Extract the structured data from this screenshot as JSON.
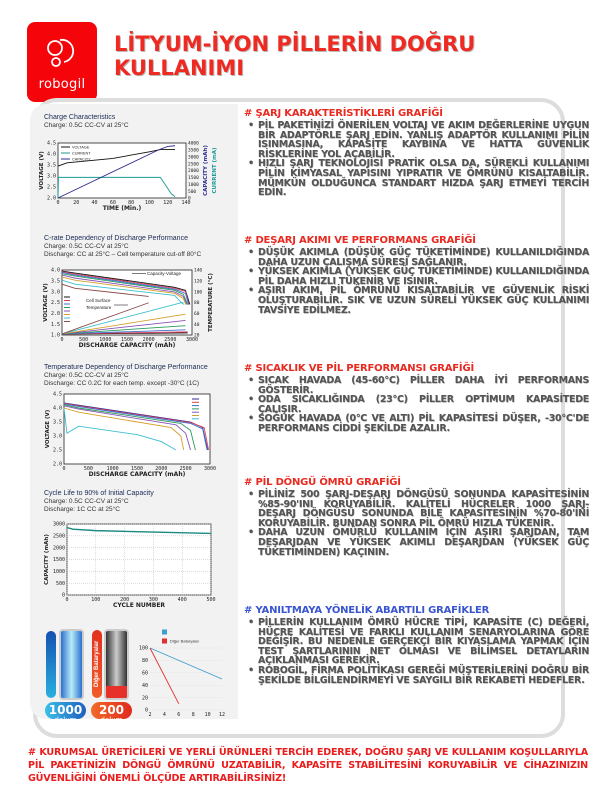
{
  "brand": {
    "name": "robogil",
    "color": "#f5050a"
  },
  "title": [
    "LİTYUM-İYON PİLLERİN DOĞRU",
    "KULLANIMI"
  ],
  "sections": [
    {
      "heading": "#  ŞARJ KARAKTERİSTİKLERİ GRAFİĞİ",
      "items": [
        "PİL PAKETİNİZİ ÖNERİLEN VOLTAJ VE AKIM DEĞERLERİNE UYGUN BİR ADAPTÖRLE ŞARJ EDİN. YANLIŞ ADAPTÖR KULLANIMI PİLİN ISINMASINA, KAPASİTE KAYBINA VE HATTA GÜVENLİK RİSKLERİNE YOL AÇABİLİR.",
        "HIZLI ŞARJ TEKNOLOJİSİ PRATİK OLSA DA, SÜREKLİ KULLANIMI PİLİN KİMYASAL YAPISINI YIPRATIR VE ÖMRÜNÜ KISALTABİLİR. MÜMKÜN OLDUĞUNCA STANDART HIZDA ŞARJ ETMEYİ TERCİH EDİN."
      ]
    },
    {
      "heading": "#  DEŞARJ AKIMI VE PERFORMANS GRAFİĞİ",
      "items": [
        "DÜŞÜK AKIMLA (DÜŞÜK GÜÇ TÜKETİMİNDE) KULLANILDIĞINDA DAHA UZUN ÇALIŞMA SÜRESİ SAĞLANIR.",
        "YÜKSEK AKIMLA (YÜKSEK GÜÇ TÜKETİMİNDE) KULLANILDIĞINDA PİL DAHA HIZLI TÜKENİR VE ISINIR.",
        "AŞIRI AKIM, PİL ÖMRÜNÜ KISALTABİLİR VE GÜVENLİK RİSKİ OLUŞTURABİLİR. SIK VE UZUN SÜRELİ YÜKSEK GÜÇ KULLANIMI TAVSİYE EDİLMEZ."
      ]
    },
    {
      "heading": "#  SICAKLIK VE PİL PERFORMANSI GRAFİĞİ",
      "items": [
        "SICAK HAVADA (45-60°C) PİLLER DAHA İYİ PERFORMANS GÖSTERİR.",
        "ODA SICAKLIĞINDA (23°C) PİLLER OPTİMUM KAPASİTEDE ÇALIŞIR.",
        "SOĞUK HAVADA (0°C VE ALTI) PİL KAPASİTESİ DÜŞER, -30°C'DE PERFORMANS CİDDİ ŞEKİLDE AZALIR."
      ]
    },
    {
      "heading": "#  PİL DÖNGÜ ÖMRÜ GRAFİĞİ",
      "items": [
        "PİLİNİZ 500 ŞARJ-DEŞARJ DÖNGÜSÜ SONUNDA KAPASİTESİNİN %85-90'INI KORUYABİLİR. KALİTELİ HÜCRELER 1000 ŞARJ-DEŞARJ DÖNGÜSÜ SONUNDA BİLE KAPASİTESİNİN %70-80'İNİ KORUYABİLİR. BUNDAN SONRA PİL ÖMRÜ HIZLA TÜKENİR.",
        "DAHA UZUN ÖMÜRLÜ KULLANIM İÇİN AŞIRI ŞARJDAN, TAM DEŞARJDAN VE YÜKSEK AKIMLI DEŞARJDAN (YÜKSEK GÜÇ TÜKETİMİNDEN) KAÇININ."
      ]
    },
    {
      "heading": "#  YANILTMAYA YÖNELİK ABARTILI GRAFİKLER",
      "items": [
        "PİLLERİN KULLANIM ÖMRÜ HÜCRE TİPİ, KAPASİTE (C) DEĞERİ, HÜCRE KALİTESİ VE FARKLI KULLANIM SENARYOLARINA GÖRE DEĞİŞİR. BU NEDENLE GERÇEKÇİ BİR KIYASLAMA YAPMAK İÇİN TEST ŞARTLARININ NET OLMASI VE BİLİMSEL DETAYLARIN AÇIKLANMASI GEREKİR.",
        "ROBOGİL, FİRMA POLİTİKASI GEREĞİ MÜŞTERİLERİNİ DOĞRU BİR ŞEKİLDE BİLGİLENDİRMEYİ VE SAYGILI BİR REKABETİ HEDEFLER."
      ]
    }
  ],
  "footer": "#  KURUMSAL ÜRETİCİLERİ VE YERLİ ÜRÜNLERİ TERCİH EDEREK, DOĞRU ŞARJ VE KULLANIM KOŞULLARIYLA PİL PAKETİNİZİN DÖNGÜ ÖMRÜNÜ UZATABİLİR, KAPASİTE STABİLİTESİNİ KORUYABİLİR VE CİHAZINIZIN GÜVENLİĞİNİ ÖNEMLİ ÖLÇÜDE ARTIRABİLİRSİNİZ!",
  "batteries": {
    "left": {
      "count": "1000",
      "unit": "dolum",
      "color": "#1f9be0"
    },
    "right": {
      "label": "Diğer Bataryalar",
      "count": "200",
      "unit": "dolum",
      "color": "#f04a23"
    }
  },
  "chart_data": [
    {
      "type": "line",
      "title": "Charge Characteristics",
      "subtitle": [
        "Charge: 0.5C CC-CV at 25°C"
      ],
      "xlabel": "TIME (Min.)",
      "ylabel": "VOLTAGE (V)",
      "y2label": "CAPACITY (mAh)",
      "y3label": "CURRENT (mA)",
      "xlim": [
        0,
        140
      ],
      "ylim": [
        2.0,
        4.5
      ],
      "y2lim": [
        0,
        4000
      ],
      "xticks": [
        "0",
        "20",
        "40",
        "60",
        "80",
        "100",
        "120",
        "140"
      ],
      "yticks": [
        "2.0",
        "2.5",
        "3.0",
        "3.5",
        "4.0",
        "4.5"
      ],
      "y2ticks": [
        "0",
        "500",
        "1000",
        "1500",
        "2000",
        "2500",
        "3000",
        "3500",
        "4000"
      ],
      "legend": "top-left",
      "series": [
        {
          "name": "VOLTAGE",
          "color": "#111111",
          "axis": "left",
          "points": [
            [
              0,
              3.45
            ],
            [
              10,
              3.6
            ],
            [
              60,
              3.8
            ],
            [
              100,
              4.1
            ],
            [
              112,
              4.2
            ],
            [
              128,
              4.2
            ]
          ]
        },
        {
          "name": "CURRENT",
          "color": "#1a9a97",
          "axis": "right",
          "points": [
            [
              0,
              0
            ],
            [
              0.5,
              1500
            ],
            [
              112,
              1500
            ],
            [
              118,
              900
            ],
            [
              124,
              300
            ],
            [
              128,
              100
            ]
          ]
        },
        {
          "name": "CAPACITY",
          "color": "#2b2b8f",
          "axis": "right",
          "points": [
            [
              0,
              0
            ],
            [
              110,
              3500
            ],
            [
              120,
              3750
            ],
            [
              128,
              3800
            ]
          ]
        }
      ]
    },
    {
      "type": "line",
      "title": "C-rate Dependency of Discharge Performance",
      "subtitle": [
        "Charge: 0.5C CC-CV at 25°C",
        "Discharge: CC at 25°C – Cell temperature cut-off 80°C"
      ],
      "xlabel": "DISCHARGE CAPACITY (mAh)",
      "ylabel": "VOLTAGE (V)",
      "y2label": "TEMPERATURE (°C)",
      "xlim": [
        0,
        3000
      ],
      "ylim": [
        1.0,
        4.2
      ],
      "y2lim": [
        20,
        145
      ],
      "xticks": [
        "0",
        "500",
        "1000",
        "1500",
        "2000",
        "2500",
        "3000"
      ],
      "yticks": [
        "1.0",
        "1.5",
        "2.0",
        "2.5",
        "3.0",
        "3.5",
        "4.0"
      ],
      "y2ticks": [
        "20",
        "40",
        "60",
        "80",
        "100",
        "120",
        "140"
      ],
      "annotations": [
        "Capacity-Voltage",
        "Cell Surface",
        "Temperature"
      ],
      "series": [
        {
          "color": "#111111",
          "axis": "left",
          "points": [
            [
              0,
              4.15
            ],
            [
              300,
              4.05
            ],
            [
              2600,
              3.35
            ],
            [
              2850,
              3.2
            ],
            [
              2950,
              2.5
            ]
          ]
        },
        {
          "color": "#d9415a",
          "axis": "left",
          "points": [
            [
              0,
              4.12
            ],
            [
              300,
              4.0
            ],
            [
              2600,
              3.3
            ],
            [
              2850,
              3.15
            ],
            [
              2930,
              2.5
            ]
          ]
        },
        {
          "color": "#3a6fd0",
          "axis": "left",
          "points": [
            [
              0,
              4.08
            ],
            [
              300,
              3.95
            ],
            [
              2600,
              3.25
            ],
            [
              2850,
              3.05
            ],
            [
              2920,
              2.5
            ]
          ]
        },
        {
          "color": "#2a9a5a",
          "axis": "left",
          "points": [
            [
              0,
              4.02
            ],
            [
              300,
              3.9
            ],
            [
              2600,
              3.2
            ],
            [
              2800,
              3.0
            ],
            [
              2900,
              2.5
            ]
          ]
        },
        {
          "color": "#8a52b8",
          "axis": "left",
          "points": [
            [
              0,
              3.95
            ],
            [
              300,
              3.8
            ],
            [
              2600,
              3.12
            ],
            [
              2800,
              2.9
            ],
            [
              2880,
              2.5
            ]
          ]
        },
        {
          "color": "#d6a02a",
          "axis": "left",
          "points": [
            [
              0,
              3.85
            ],
            [
              300,
              3.7
            ],
            [
              2600,
              3.05
            ],
            [
              2800,
              2.8
            ],
            [
              2860,
              2.5
            ]
          ]
        },
        {
          "color": "#3bbfcf",
          "axis": "left",
          "points": [
            [
              0,
              3.7
            ],
            [
              300,
              3.5
            ],
            [
              2600,
              2.95
            ],
            [
              2750,
              2.6
            ],
            [
              2820,
              2.5
            ]
          ]
        },
        {
          "color": "#8a4a4a",
          "axis": "left",
          "points": [
            [
              0,
              3.5
            ],
            [
              300,
              3.3
            ],
            [
              2000,
              2.9
            ]
          ]
        },
        {
          "color": "#111111",
          "axis": "right",
          "points": [
            [
              0,
              22
            ],
            [
              2900,
              24
            ]
          ]
        },
        {
          "color": "#d9415a",
          "axis": "right",
          "points": [
            [
              0,
              22
            ],
            [
              2900,
              26
            ]
          ]
        },
        {
          "color": "#3a6fd0",
          "axis": "right",
          "points": [
            [
              0,
              22
            ],
            [
              2850,
              30
            ]
          ]
        },
        {
          "color": "#2a9a5a",
          "axis": "right",
          "points": [
            [
              0,
              22
            ],
            [
              2850,
              38
            ]
          ]
        },
        {
          "color": "#8a52b8",
          "axis": "right",
          "points": [
            [
              0,
              22
            ],
            [
              2850,
              48
            ]
          ]
        },
        {
          "color": "#d6a02a",
          "axis": "right",
          "points": [
            [
              0,
              22
            ],
            [
              2850,
              60
            ]
          ]
        },
        {
          "color": "#3bbfcf",
          "axis": "right",
          "points": [
            [
              0,
              22
            ],
            [
              2800,
              83
            ]
          ]
        },
        {
          "color": "#8a4a4a",
          "axis": "right",
          "points": [
            [
              0,
              22
            ],
            [
              2000,
              82
            ]
          ]
        }
      ]
    },
    {
      "type": "line",
      "title": "Temperature Dependency of Discharge Performance",
      "subtitle": [
        "Charge: 0.5C CC-CV at 25°C",
        "Discharge: CC 0.2C for each temp. except -30°C (1C)"
      ],
      "xlabel": "DISCHARGE CAPACITY (mAh)",
      "ylabel": "VOLTAGE (V)",
      "xlim": [
        0,
        3000
      ],
      "ylim": [
        2.0,
        4.5
      ],
      "xticks": [
        "0",
        "500",
        "1000",
        "1500",
        "2000",
        "2500",
        "3000"
      ],
      "yticks": [
        "2.0",
        "2.5",
        "3.0",
        "3.5",
        "4.0",
        "4.5"
      ],
      "legend": "top-right",
      "series": [
        {
          "color": "#2b2b8f",
          "points": [
            [
              0,
              4.18
            ],
            [
              300,
              4.1
            ],
            [
              2600,
              3.5
            ],
            [
              2850,
              3.3
            ],
            [
              2950,
              2.5
            ]
          ]
        },
        {
          "color": "#d9415a",
          "points": [
            [
              0,
              4.17
            ],
            [
              300,
              4.08
            ],
            [
              2600,
              3.48
            ],
            [
              2880,
              3.3
            ],
            [
              2970,
              2.5
            ]
          ]
        },
        {
          "color": "#3a6fd0",
          "points": [
            [
              0,
              4.15
            ],
            [
              300,
              4.05
            ],
            [
              2600,
              3.45
            ],
            [
              2850,
              3.25
            ],
            [
              2940,
              2.5
            ]
          ]
        },
        {
          "color": "#2a9a5a",
          "points": [
            [
              0,
              4.12
            ],
            [
              300,
              4.0
            ],
            [
              2400,
              3.45
            ],
            [
              2600,
              3.2
            ],
            [
              2700,
              2.5
            ]
          ]
        },
        {
          "color": "#8a52b8",
          "points": [
            [
              0,
              4.08
            ],
            [
              300,
              3.96
            ],
            [
              2300,
              3.4
            ],
            [
              2500,
              3.1
            ],
            [
              2600,
              2.5
            ]
          ]
        },
        {
          "color": "#d6a02a",
          "points": [
            [
              0,
              4.0
            ],
            [
              300,
              3.85
            ],
            [
              2200,
              3.3
            ],
            [
              2400,
              3.0
            ],
            [
              2460,
              2.5
            ]
          ]
        },
        {
          "color": "#3bbfcf",
          "points": [
            [
              0,
              4.0
            ],
            [
              60,
              3.1
            ],
            [
              300,
              3.35
            ],
            [
              1500,
              3.05
            ],
            [
              2000,
              2.8
            ],
            [
              2300,
              2.5
            ]
          ]
        }
      ]
    },
    {
      "type": "line",
      "title": "Cycle Life to 90% of Initial Capacity",
      "subtitle": [
        "Charge: 0.5C CC-CV at 25°C",
        "Discharge: 1C CC at 25°C"
      ],
      "xlabel": "CYCLE NUMBER",
      "ylabel": "CAPACITY (mAh)",
      "xlim": [
        0,
        500
      ],
      "ylim": [
        0,
        3000
      ],
      "xticks": [
        "0",
        "100",
        "200",
        "300",
        "400",
        "500"
      ],
      "yticks": [
        "0",
        "500",
        "1000",
        "1500",
        "2000",
        "2500",
        "3000"
      ],
      "grid": true,
      "series": [
        {
          "color": "#1a8a82",
          "points": [
            [
              0,
              2850
            ],
            [
              20,
              2780
            ],
            [
              100,
              2720
            ],
            [
              300,
              2660
            ],
            [
              500,
              2600
            ]
          ]
        }
      ]
    },
    {
      "type": "line",
      "xlim": [
        2,
        12
      ],
      "ylim": [
        0,
        100
      ],
      "xticks": [
        "2",
        "4",
        "6",
        "8",
        "10",
        "12"
      ],
      "yticks": [
        "0",
        "20",
        "40",
        "60",
        "80",
        "100"
      ],
      "grid": true,
      "legend": "top",
      "series": [
        {
          "name": "",
          "color": "#3aa0d0",
          "points": [
            [
              2,
              100
            ],
            [
              12,
              50
            ]
          ]
        },
        {
          "name": "Diğer Bataryalar",
          "color": "#e03030",
          "points": [
            [
              2,
              100
            ],
            [
              6,
              10
            ]
          ]
        }
      ]
    }
  ]
}
